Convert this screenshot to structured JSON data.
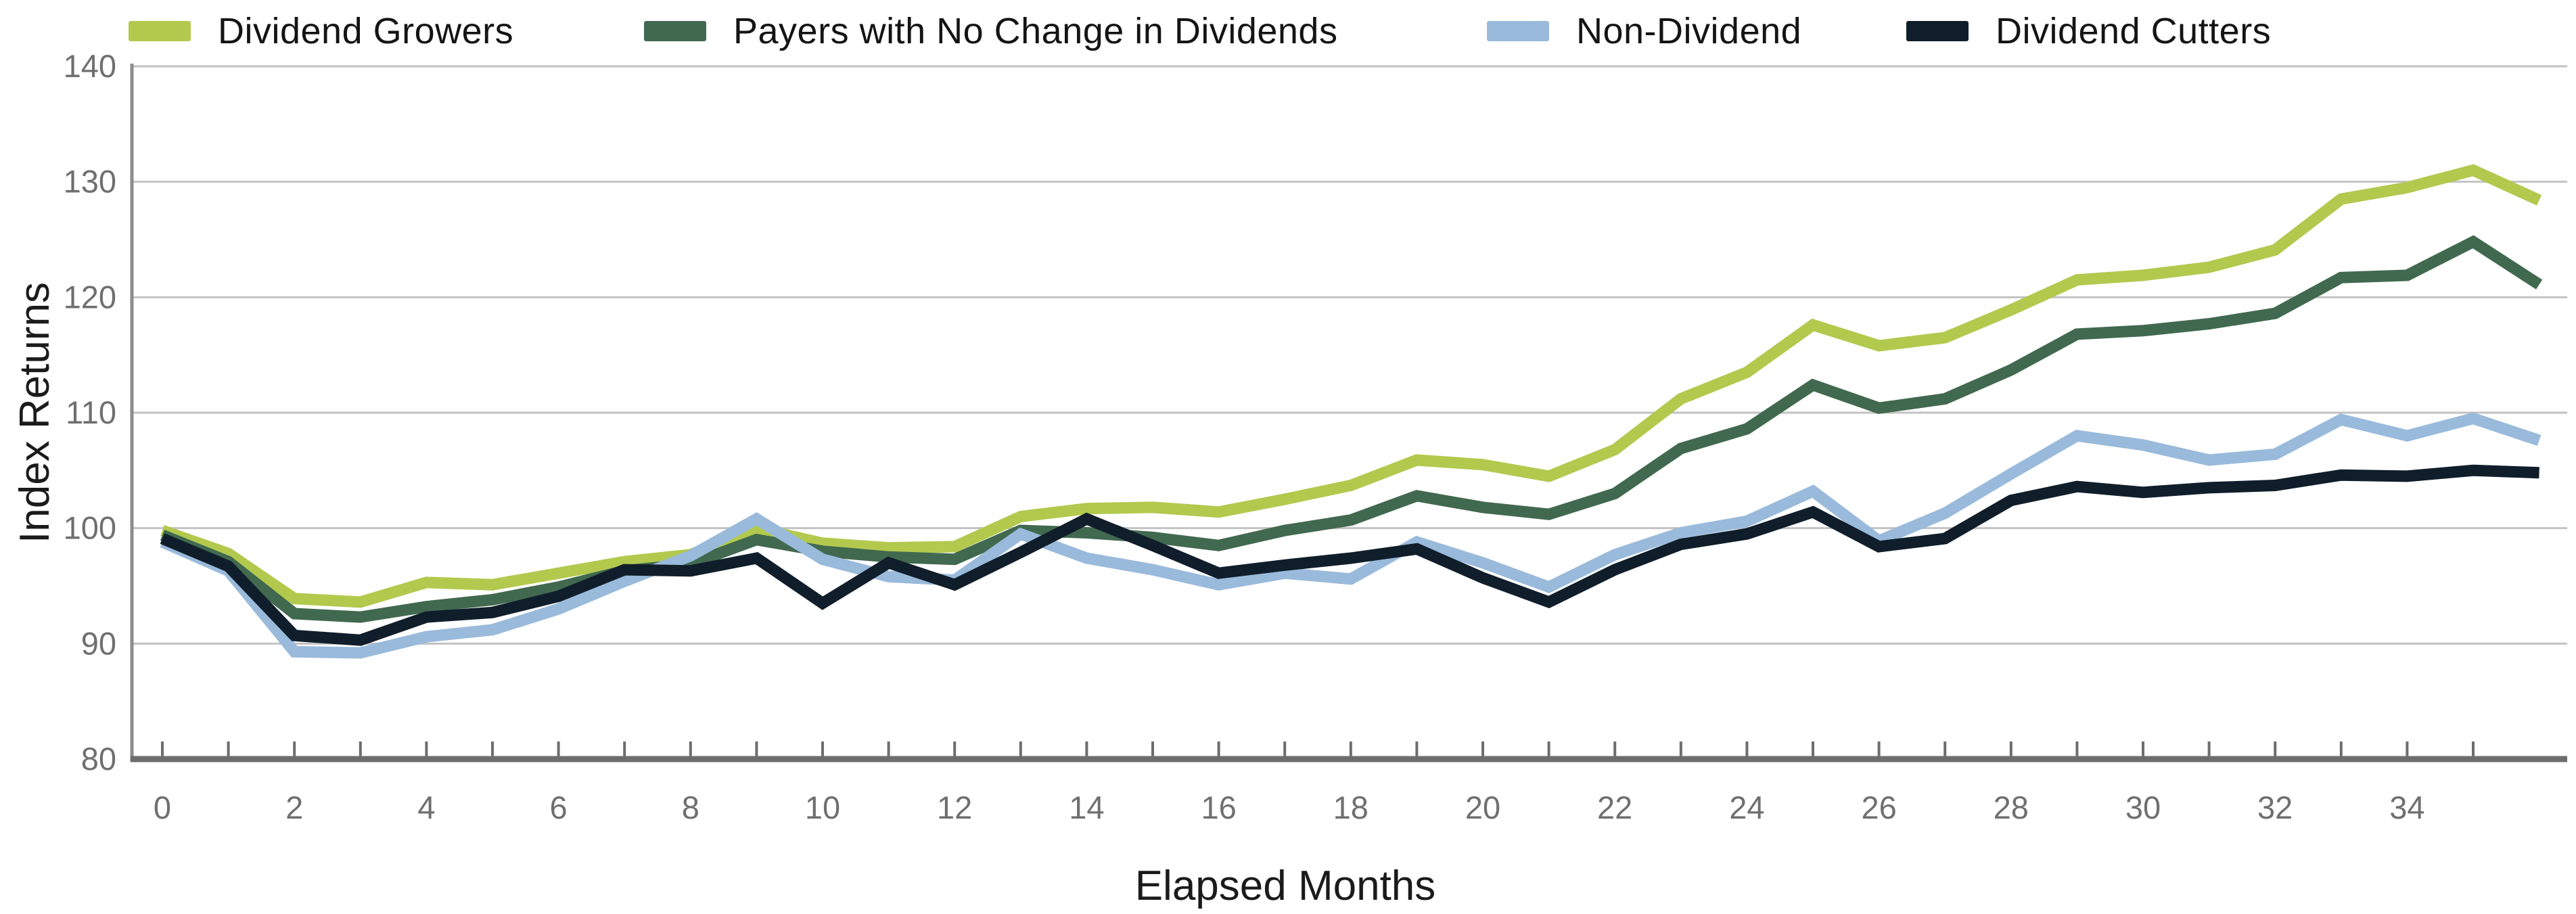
{
  "chart_data": {
    "type": "line",
    "title": "",
    "xlabel": "Elapsed Months",
    "ylabel": "Index Returns",
    "x": [
      0,
      1,
      2,
      3,
      4,
      5,
      6,
      7,
      8,
      9,
      10,
      11,
      12,
      13,
      14,
      15,
      16,
      17,
      18,
      19,
      20,
      21,
      22,
      23,
      24,
      25,
      26,
      27,
      28,
      29,
      30,
      31,
      32,
      33,
      34,
      35,
      36
    ],
    "x_tick_every": 1,
    "x_label_every": 2,
    "x_labels_shown": [
      0,
      2,
      4,
      6,
      8,
      10,
      12,
      14,
      16,
      18,
      20,
      22,
      24,
      26,
      28,
      30,
      32,
      34
    ],
    "ylim": [
      80,
      140
    ],
    "y_ticks": [
      140,
      130,
      120,
      110,
      100,
      90,
      80
    ],
    "grid": "horizontal",
    "legend_position": "top",
    "series": [
      {
        "name": "Dividend Growers",
        "color": "#b2c94e",
        "values": [
          99.8,
          97.8,
          93.9,
          93.6,
          95.3,
          95.1,
          96.1,
          97.1,
          97.7,
          100.0,
          98.7,
          98.3,
          98.4,
          101.0,
          101.7,
          101.8,
          101.4,
          102.5,
          103.7,
          105.9,
          105.5,
          104.5,
          106.8,
          111.2,
          113.5,
          117.6,
          115.8,
          116.5,
          118.9,
          121.5,
          121.9,
          122.6,
          124.1,
          128.5,
          129.5,
          131.0,
          128.4
        ]
      },
      {
        "name": "Payers with No Change in Dividends",
        "color": "#41694f",
        "values": [
          99.4,
          97.1,
          92.6,
          92.3,
          93.2,
          93.8,
          94.9,
          96.3,
          96.9,
          99.0,
          98.0,
          97.5,
          97.3,
          99.8,
          99.6,
          99.2,
          98.5,
          99.8,
          100.7,
          102.8,
          101.8,
          101.2,
          103.0,
          106.9,
          108.6,
          112.4,
          110.4,
          111.2,
          113.7,
          116.8,
          117.1,
          117.7,
          118.6,
          121.7,
          121.9,
          124.8,
          121.1
        ]
      },
      {
        "name": "Non-Dividend",
        "color": "#99badb",
        "values": [
          98.8,
          96.3,
          89.3,
          89.2,
          90.6,
          91.2,
          93.0,
          95.4,
          97.6,
          100.8,
          97.3,
          95.8,
          95.5,
          99.5,
          97.4,
          96.4,
          95.1,
          96.1,
          95.6,
          98.8,
          97.0,
          94.9,
          97.7,
          99.6,
          100.6,
          103.2,
          98.9,
          101.3,
          104.7,
          108.0,
          107.2,
          105.9,
          106.4,
          109.4,
          108.0,
          109.5,
          107.6
        ]
      },
      {
        "name": "Dividend Cutters",
        "color": "#101e2b",
        "values": [
          99.1,
          96.7,
          90.7,
          90.3,
          92.3,
          92.7,
          94.1,
          96.4,
          96.3,
          97.4,
          93.5,
          97.0,
          95.1,
          97.9,
          100.8,
          98.5,
          96.1,
          96.8,
          97.4,
          98.2,
          95.7,
          93.6,
          96.4,
          98.6,
          99.5,
          101.4,
          98.4,
          99.1,
          102.4,
          103.6,
          103.1,
          103.5,
          103.7,
          104.6,
          104.5,
          105.0,
          104.8
        ]
      }
    ],
    "colors": {
      "gridline": "#c2c2c2",
      "bottom_axis": "#6d6d6d",
      "left_axis": "#8c8c8c",
      "tick": "#6d6d6d",
      "tick_label": "#6f6f6f",
      "axis_title": "#1b1b1b"
    }
  }
}
